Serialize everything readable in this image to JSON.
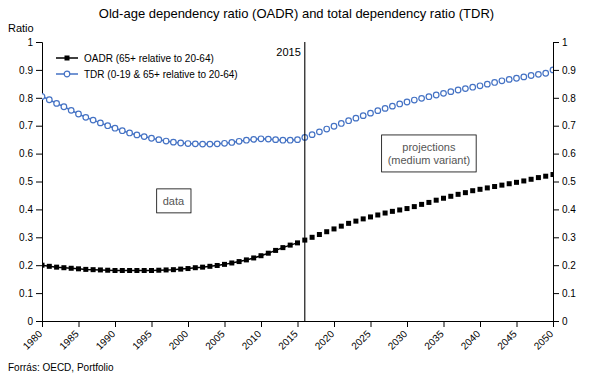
{
  "chart_data": {
    "type": "line",
    "title": "Old-age dependency ratio (OADR) and total dependency ratio (TDR)",
    "ylabel": "Ratio",
    "footnote": "Forrás: OECD, Portfolio",
    "xlim": [
      1980,
      2050
    ],
    "xticks": [
      1980,
      1985,
      1990,
      1995,
      2000,
      2005,
      2010,
      2015,
      2020,
      2025,
      2030,
      2035,
      2040,
      2045,
      2050
    ],
    "ylim": [
      0,
      1.0
    ],
    "yticks": [
      0,
      0.1,
      0.2,
      0.3,
      0.4,
      0.5,
      0.6,
      0.7,
      0.8,
      0.9,
      1
    ],
    "y2lim": [
      0,
      1.0
    ],
    "y2ticks": [
      0,
      0.1,
      0.2,
      0.3,
      0.4,
      0.5,
      0.6,
      0.7,
      0.8,
      0.9,
      1
    ],
    "grid": false,
    "legend": "upper left",
    "series": [
      {
        "name": "OADR (65+ relative to 20-64)",
        "color": "#000000",
        "marker": "square",
        "line_style": "solid",
        "x": [
          1980,
          1981,
          1982,
          1983,
          1984,
          1985,
          1986,
          1987,
          1988,
          1989,
          1990,
          1991,
          1992,
          1993,
          1994,
          1995,
          1996,
          1997,
          1998,
          1999,
          2000,
          2001,
          2002,
          2003,
          2004,
          2005,
          2006,
          2007,
          2008,
          2009,
          2010,
          2011,
          2012,
          2013,
          2014,
          2015
        ],
        "values": [
          0.2,
          0.196,
          0.193,
          0.191,
          0.189,
          0.187,
          0.185,
          0.184,
          0.183,
          0.182,
          0.181,
          0.181,
          0.181,
          0.181,
          0.181,
          0.181,
          0.182,
          0.183,
          0.184,
          0.186,
          0.188,
          0.191,
          0.193,
          0.196,
          0.199,
          0.203,
          0.208,
          0.213,
          0.219,
          0.226,
          0.234,
          0.243,
          0.253,
          0.263,
          0.272,
          0.28
        ]
      },
      {
        "color": "#000000",
        "marker": "square",
        "line_style": "none",
        "x": [
          2016,
          2017,
          2018,
          2019,
          2020,
          2021,
          2022,
          2023,
          2024,
          2025,
          2026,
          2027,
          2028,
          2029,
          2030,
          2031,
          2032,
          2033,
          2034,
          2035,
          2036,
          2037,
          2038,
          2039,
          2040,
          2041,
          2042,
          2043,
          2044,
          2045,
          2046,
          2047,
          2048,
          2049,
          2050
        ],
        "values": [
          0.29,
          0.3,
          0.31,
          0.32,
          0.33,
          0.34,
          0.35,
          0.358,
          0.366,
          0.373,
          0.38,
          0.387,
          0.393,
          0.398,
          0.403,
          0.41,
          0.418,
          0.425,
          0.433,
          0.44,
          0.447,
          0.454,
          0.46,
          0.467,
          0.472,
          0.477,
          0.482,
          0.487,
          0.492,
          0.497,
          0.502,
          0.508,
          0.514,
          0.519,
          0.525
        ]
      },
      {
        "name": "TDR (0-19 & 65+ relative to 20-64)",
        "color": "#4472c4",
        "marker": "circle",
        "line_style": "solid",
        "x": [
          1980,
          1981,
          1982,
          1983,
          1984,
          1985,
          1986,
          1987,
          1988,
          1989,
          1990,
          1991,
          1992,
          1993,
          1994,
          1995,
          1996,
          1997,
          1998,
          1999,
          2000,
          2001,
          2002,
          2003,
          2004,
          2005,
          2006,
          2007,
          2008,
          2009,
          2010,
          2011,
          2012,
          2013,
          2014,
          2015
        ],
        "values": [
          0.805,
          0.793,
          0.78,
          0.768,
          0.755,
          0.742,
          0.73,
          0.72,
          0.71,
          0.7,
          0.691,
          0.682,
          0.674,
          0.667,
          0.661,
          0.655,
          0.65,
          0.645,
          0.641,
          0.638,
          0.636,
          0.635,
          0.634,
          0.634,
          0.635,
          0.637,
          0.64,
          0.644,
          0.648,
          0.651,
          0.653,
          0.652,
          0.65,
          0.648,
          0.648,
          0.65
        ]
      },
      {
        "color": "#4472c4",
        "marker": "circle",
        "line_style": "none",
        "x": [
          2016,
          2017,
          2018,
          2019,
          2020,
          2021,
          2022,
          2023,
          2024,
          2025,
          2026,
          2027,
          2028,
          2029,
          2030,
          2031,
          2032,
          2033,
          2034,
          2035,
          2036,
          2037,
          2038,
          2039,
          2040,
          2041,
          2042,
          2043,
          2044,
          2045,
          2046,
          2047,
          2048,
          2049,
          2050
        ],
        "values": [
          0.658,
          0.668,
          0.678,
          0.688,
          0.698,
          0.708,
          0.718,
          0.727,
          0.736,
          0.745,
          0.754,
          0.762,
          0.77,
          0.778,
          0.785,
          0.792,
          0.798,
          0.804,
          0.81,
          0.816,
          0.822,
          0.828,
          0.833,
          0.838,
          0.843,
          0.849,
          0.855,
          0.861,
          0.866,
          0.87,
          0.875,
          0.88,
          0.884,
          0.888,
          0.9
        ]
      }
    ],
    "reference_lines": [
      {
        "x": 2016,
        "label": "2015"
      }
    ],
    "annotations": [
      {
        "text": "data"
      },
      {
        "text": "projections\n(medium variant)"
      }
    ]
  }
}
